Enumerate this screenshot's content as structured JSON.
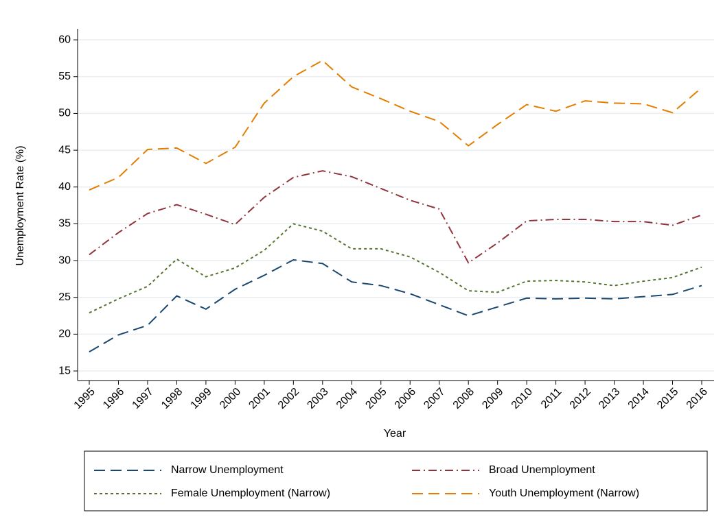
{
  "chart_data": {
    "type": "line",
    "x_label": "Year",
    "y_label": "Unemployment Rate (%)",
    "categories": [
      "1995",
      "1996",
      "1997",
      "1998",
      "1999",
      "2000",
      "2001",
      "2002",
      "2003",
      "2004",
      "2005",
      "2006",
      "2007",
      "2008",
      "2009",
      "2010",
      "2011",
      "2012",
      "2013",
      "2014",
      "2015",
      "2016"
    ],
    "series": [
      {
        "name": "Narrow Unemployment",
        "color": "#1a476f",
        "dash": "long-dash",
        "values": [
          17.6,
          19.9,
          21.2,
          25.2,
          23.4,
          26.1,
          28.0,
          30.1,
          29.6,
          27.1,
          26.6,
          25.5,
          24.0,
          22.5,
          23.7,
          24.9,
          24.8,
          24.9,
          24.8,
          25.1,
          25.4,
          26.6
        ]
      },
      {
        "name": "Broad Unemployment",
        "color": "#90353b",
        "dash": "dash-dot",
        "values": [
          30.8,
          33.8,
          36.4,
          37.6,
          36.3,
          34.9,
          38.6,
          41.3,
          42.2,
          41.4,
          39.8,
          38.2,
          37.0,
          29.7,
          32.4,
          35.4,
          35.6,
          35.6,
          35.3,
          35.3,
          34.8,
          36.2
        ]
      },
      {
        "name": "Female Unemployment (Narrow)",
        "color": "#55752f",
        "dash": "short-dash",
        "values": [
          22.9,
          24.8,
          26.5,
          30.2,
          27.8,
          29.0,
          31.4,
          35.0,
          34.0,
          31.6,
          31.6,
          30.5,
          28.4,
          25.9,
          25.7,
          27.2,
          27.3,
          27.1,
          26.6,
          27.2,
          27.7,
          29.1
        ]
      },
      {
        "name": "Youth Unemployment (Narrow)",
        "color": "#e37e00",
        "dash": "long-dash",
        "values": [
          39.6,
          41.3,
          45.1,
          45.3,
          43.2,
          45.4,
          51.4,
          55.0,
          57.2,
          53.6,
          52.0,
          50.3,
          48.9,
          45.6,
          48.5,
          51.2,
          50.3,
          51.7,
          51.4,
          51.3,
          50.1,
          53.5
        ]
      }
    ],
    "ylim": [
      13.7,
      61.5
    ],
    "yticks": [
      15,
      20,
      25,
      30,
      35,
      40,
      45,
      50,
      55,
      60
    ],
    "grid": true,
    "legend": "bottom"
  }
}
